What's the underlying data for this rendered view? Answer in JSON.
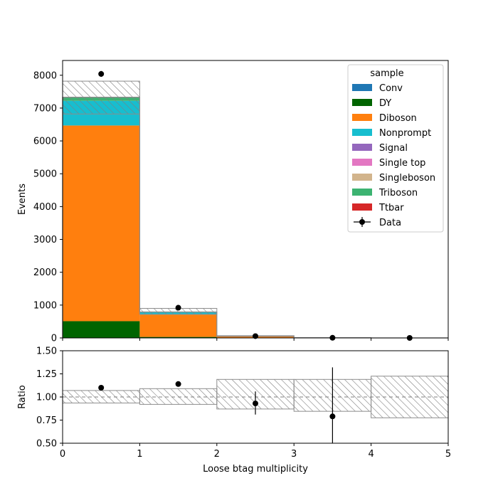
{
  "chart_data": [
    {
      "type": "bar",
      "subtype": "stacked-histogram",
      "xlabel": "",
      "ylabel": "Events",
      "xlim": [
        0,
        5
      ],
      "ylim": [
        0,
        8450
      ],
      "yticks": [
        "0",
        "1000",
        "2000",
        "3000",
        "4000",
        "5000",
        "6000",
        "7000",
        "8000"
      ],
      "ytick_values": [
        0,
        1000,
        2000,
        3000,
        4000,
        5000,
        6000,
        7000,
        8000
      ],
      "bin_edges": [
        0,
        1,
        2,
        3,
        4,
        5
      ],
      "series": [
        {
          "name": "Conv",
          "color": "#1f77b4",
          "values": [
            0,
            0,
            0,
            0,
            0
          ]
        },
        {
          "name": "DY",
          "color": "#006400",
          "values": [
            510,
            30,
            5,
            0,
            0
          ]
        },
        {
          "name": "Diboson",
          "color": "#ff7f0e",
          "values": [
            5960,
            680,
            40,
            3,
            0
          ]
        },
        {
          "name": "Nonprompt",
          "color": "#17becf",
          "values": [
            750,
            70,
            8,
            2,
            0
          ]
        },
        {
          "name": "Signal",
          "color": "#9467bd",
          "values": [
            0,
            0,
            0,
            0,
            0
          ]
        },
        {
          "name": "Single top",
          "color": "#e377c2",
          "values": [
            0,
            0,
            0,
            0,
            0
          ]
        },
        {
          "name": "Singleboson",
          "color": "#d2b48c",
          "values": [
            0,
            0,
            0,
            0,
            0
          ]
        },
        {
          "name": "Triboson",
          "color": "#3cb371",
          "values": [
            110,
            10,
            2,
            0,
            0
          ]
        },
        {
          "name": "Ttbar",
          "color": "#d62728",
          "values": [
            0,
            0,
            0,
            0,
            0
          ]
        }
      ],
      "total": [
        7330,
        790,
        55,
        5,
        0
      ],
      "uncertainty_band": {
        "low": [
          6820,
          720,
          48,
          4,
          0
        ],
        "high": [
          7820,
          900,
          68,
          8,
          0
        ]
      },
      "data": {
        "name": "Data",
        "x": [
          0.5,
          1.5,
          2.5,
          3.5,
          4.5
        ],
        "y": [
          8040,
          920,
          55,
          5,
          0
        ],
        "yerr": [
          90,
          30,
          7,
          2,
          0
        ]
      },
      "legend": {
        "title": "sample",
        "placement": "top-right"
      }
    },
    {
      "type": "scatter",
      "subtype": "ratio",
      "xlabel": "Loose btag multiplicity",
      "ylabel": "Ratio",
      "xlim": [
        0,
        5
      ],
      "ylim": [
        0.5,
        1.5
      ],
      "xticks": [
        "0",
        "1",
        "2",
        "3",
        "4",
        "5"
      ],
      "xtick_values": [
        0,
        1,
        2,
        3,
        4,
        5
      ],
      "yticks": [
        "0.50",
        "0.75",
        "1.00",
        "1.25",
        "1.50"
      ],
      "ytick_values": [
        0.5,
        0.75,
        1.0,
        1.25,
        1.5
      ],
      "reference_line": 1.0,
      "band": {
        "low": [
          0.935,
          0.92,
          0.87,
          0.845,
          0.775
        ],
        "high": [
          1.07,
          1.09,
          1.19,
          1.19,
          1.225
        ]
      },
      "x": [
        0.5,
        1.5,
        2.5,
        3.5
      ],
      "y": [
        1.1,
        1.14,
        0.93,
        0.79
      ],
      "yerr": [
        [
          0.0,
          0.0
        ],
        [
          0.0,
          0.0
        ],
        [
          0.12,
          0.13
        ],
        [
          0.79,
          0.53
        ]
      ]
    }
  ]
}
